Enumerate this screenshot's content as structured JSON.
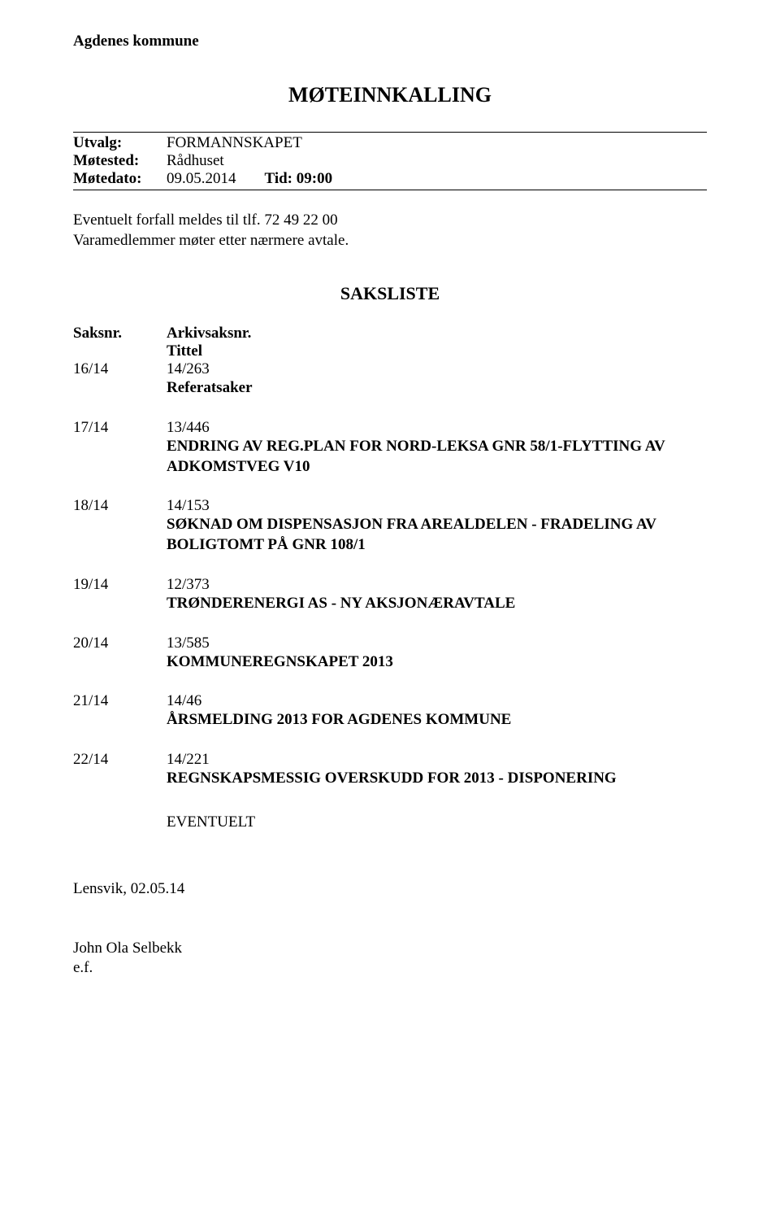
{
  "organization": "Agdenes kommune",
  "main_title": "MØTEINNKALLING",
  "meeting": {
    "utvalg_label": "Utvalg:",
    "utvalg_value": "FORMANNSKAPET",
    "motested_label": "Møtested:",
    "motested_value": "Rådhuset",
    "motedato_label": "Møtedato:",
    "motedato_value": "09.05.2014",
    "tid_label": "Tid: 09:00"
  },
  "notice": {
    "line1": "Eventuelt forfall meldes til tlf. 72 49 22 00",
    "line2": "Varamedlemmer møter etter nærmere avtale."
  },
  "saksliste_title": "SAKSLISTE",
  "columns": {
    "saksnr": "Saksnr.",
    "arkiv": "Arkivsaksnr.",
    "tittel": "Tittel"
  },
  "cases": [
    {
      "saksnr": "16/14",
      "arkiv": "14/263",
      "title": "Referatsaker"
    },
    {
      "saksnr": "17/14",
      "arkiv": "13/446",
      "title": "ENDRING AV REG.PLAN FOR NORD-LEKSA GNR 58/1-FLYTTING AV ADKOMSTVEG V10"
    },
    {
      "saksnr": "18/14",
      "arkiv": "14/153",
      "title": "SØKNAD OM DISPENSASJON FRA AREALDELEN - FRADELING AV BOLIGTOMT PÅ GNR 108/1"
    },
    {
      "saksnr": "19/14",
      "arkiv": "12/373",
      "title": "TRØNDERENERGI AS - NY AKSJONÆRAVTALE"
    },
    {
      "saksnr": "20/14",
      "arkiv": "13/585",
      "title": "KOMMUNEREGNSKAPET 2013"
    },
    {
      "saksnr": "21/14",
      "arkiv": "14/46",
      "title": "ÅRSMELDING 2013 FOR AGDENES KOMMUNE"
    },
    {
      "saksnr": "22/14",
      "arkiv": "14/221",
      "title": "REGNSKAPSMESSIG OVERSKUDD FOR 2013 - DISPONERING"
    }
  ],
  "eventuelt": "EVENTUELT",
  "footer": {
    "date": "Lensvik, 02.05.14",
    "name": "John Ola Selbekk",
    "ef": "e.f."
  }
}
